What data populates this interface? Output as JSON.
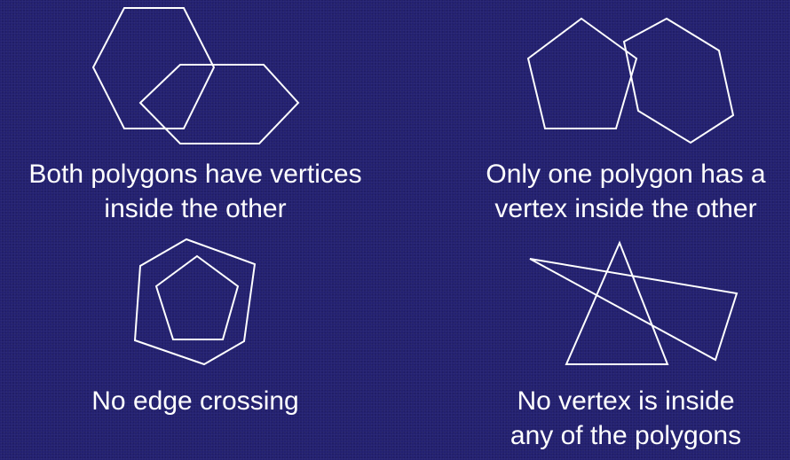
{
  "panels": {
    "top_left": {
      "caption_line1": "Both polygons have vertices",
      "caption_line2": "inside the other"
    },
    "top_right": {
      "caption_line1": "Only one polygon has a",
      "caption_line2": "vertex inside the other"
    },
    "bottom_left": {
      "caption_line1": "No edge crossing"
    },
    "bottom_right": {
      "caption_line1": "No vertex is inside",
      "caption_line2": "any of the polygons"
    }
  },
  "colors": {
    "background": "#232070",
    "stroke": "#ffffff",
    "text": "#ffffff"
  }
}
